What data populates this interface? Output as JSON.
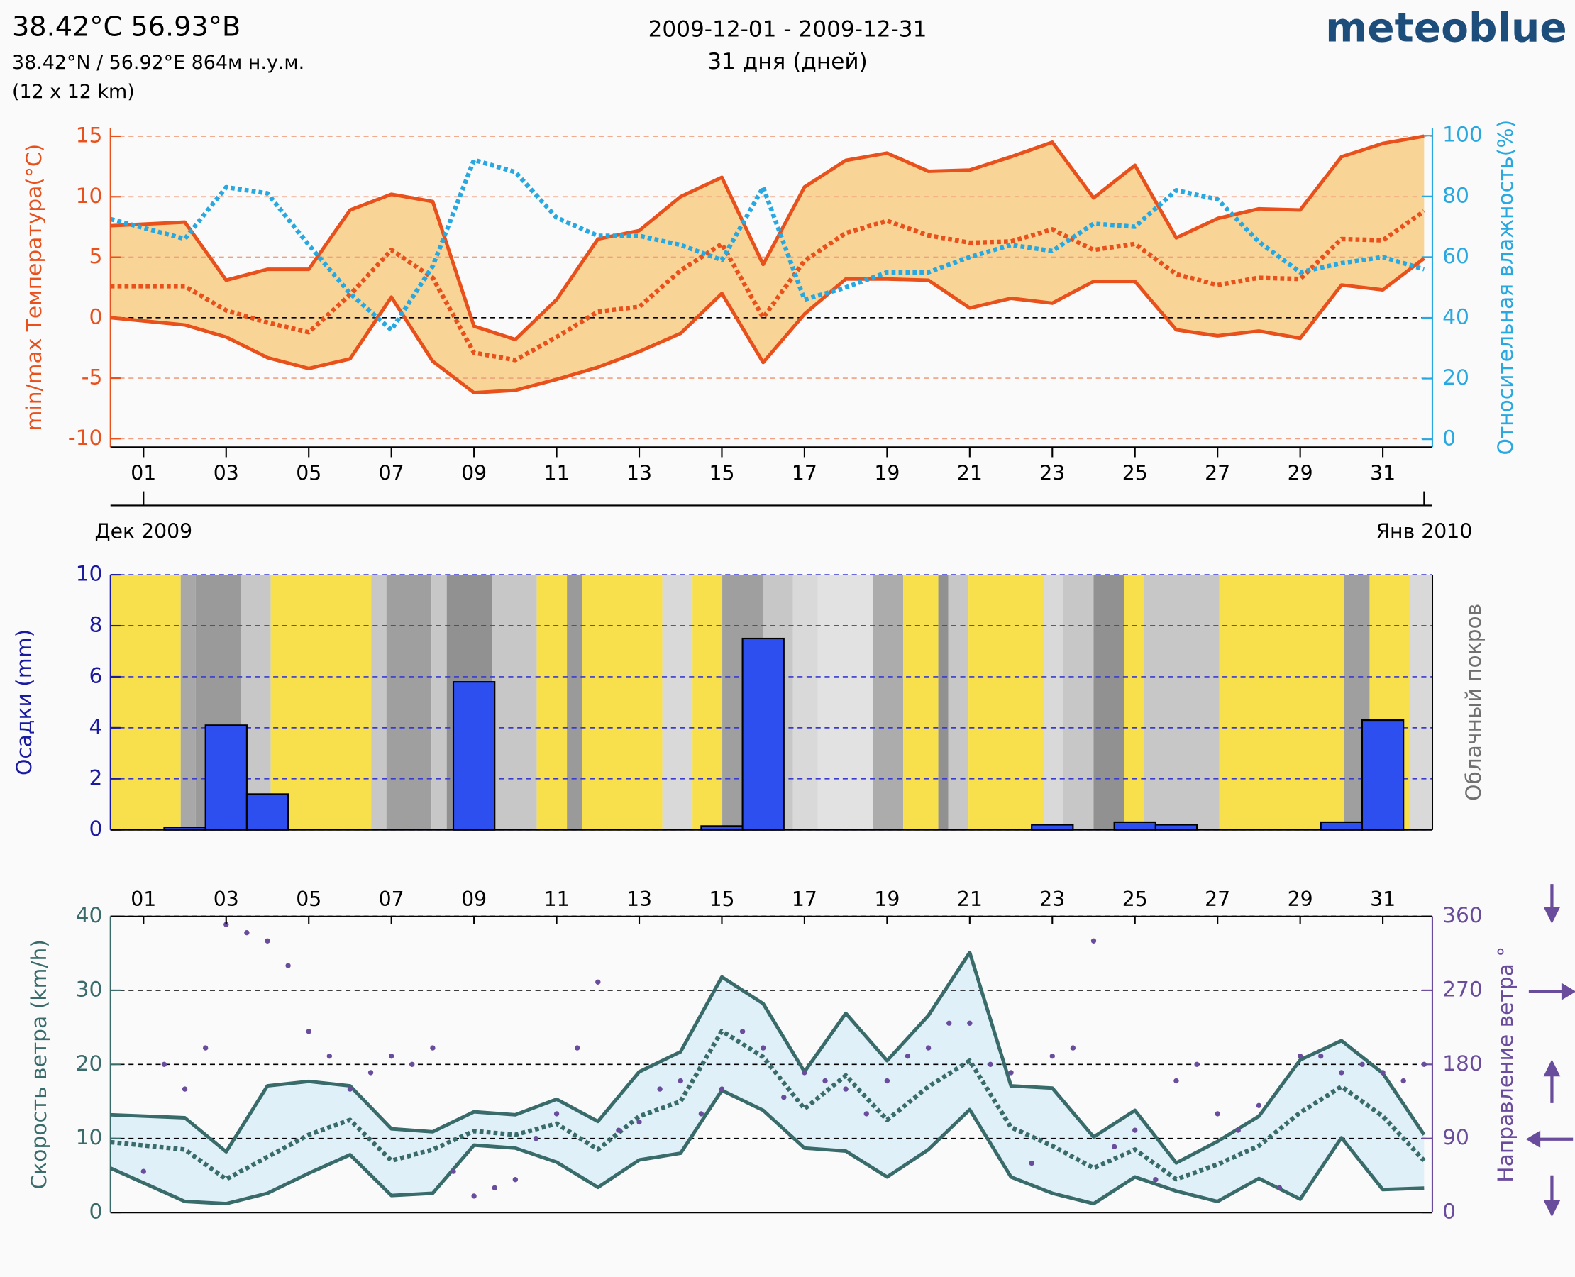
{
  "header": {
    "location": "38.42°C 56.93°B",
    "coords": "38.42°N / 56.92°E   864м н.у.м.",
    "grid": "(12 x 12 km)",
    "period": "2009-12-01 - 2009-12-31",
    "days": "31 дня (дней)",
    "brand": "meteoblue"
  },
  "chart_data": [
    {
      "type": "line",
      "ylabel": "min/max Температура(°C)",
      "y2label": "Относительная влажность(%)",
      "x": [
        0.2,
        2,
        3,
        4,
        5,
        6,
        7,
        8,
        9,
        10,
        11,
        12,
        13,
        14,
        15,
        16,
        17,
        18,
        19,
        20,
        21,
        22,
        23,
        24,
        25,
        26,
        27,
        28,
        29,
        30,
        31,
        32
      ],
      "xlim": [
        0.2,
        32.2
      ],
      "xticks": [
        {
          "value": 1,
          "label": "01"
        },
        {
          "value": 3,
          "label": "03"
        },
        {
          "value": 5,
          "label": "05"
        },
        {
          "value": 7,
          "label": "07"
        },
        {
          "value": 9,
          "label": "09"
        },
        11,
        13,
        15,
        17,
        19,
        21,
        23,
        25,
        27,
        29,
        31
      ],
      "month_ticks": [
        {
          "value": 1,
          "label": "Дек 2009"
        },
        {
          "value": 32,
          "label": "Янв 2010"
        }
      ],
      "ylim": [
        -10.7,
        15.7
      ],
      "yticks": [
        -10,
        -5,
        0,
        5,
        10,
        15
      ],
      "y2lim": [
        -2.6,
        102.6
      ],
      "y2ticks": [
        0,
        20,
        40,
        60,
        80,
        100
      ],
      "band_color": "#f8d597",
      "grid": true,
      "series": [
        {
          "color": "#e8501c",
          "style": "solid",
          "values": [
            7.6,
            7.9,
            3.1,
            4,
            4,
            8.9,
            10.2,
            9.6,
            -0.7,
            -1.8,
            1.5,
            6.5,
            7.2,
            10,
            11.6,
            4.4,
            10.8,
            13,
            13.6,
            12.1,
            12.2,
            13.3,
            14.5,
            9.9,
            12.6,
            6.6,
            8.2,
            9,
            8.9,
            13.3,
            14.4,
            15
          ]
        },
        {
          "color": "#e8501c",
          "style": "solid",
          "values": [
            0,
            -0.6,
            -1.6,
            -3.3,
            -4.2,
            -3.4,
            1.7,
            -3.6,
            -6.2,
            -6,
            -5.1,
            -4.1,
            -2.8,
            -1.3,
            2,
            -3.7,
            0.3,
            3.2,
            3.2,
            3.1,
            0.8,
            1.6,
            1.2,
            3,
            3,
            -1,
            -1.5,
            -1.1,
            -1.7,
            2.7,
            2.3,
            4.9
          ]
        },
        {
          "color": "#e8501c",
          "style": "dotted",
          "values": [
            2.6,
            2.6,
            0.6,
            -0.4,
            -1.2,
            1.9,
            5.6,
            3.3,
            -2.9,
            -3.5,
            -1.6,
            0.5,
            0.9,
            3.9,
            6.1,
            0,
            4.7,
            7,
            8,
            6.8,
            6.2,
            6.3,
            7.3,
            5.6,
            6.1,
            3.6,
            2.7,
            3.3,
            3.2,
            6.5,
            6.4,
            8.8
          ]
        },
        {
          "color": "#28a8e0",
          "style": "dotted",
          "axis": "y2",
          "values": [
            72.5,
            66,
            83,
            81,
            64,
            48,
            36,
            57,
            92,
            88,
            73,
            67,
            67,
            64,
            59,
            83,
            46,
            50,
            55,
            55,
            60,
            64,
            62,
            71,
            70,
            82,
            79,
            65,
            55,
            58,
            60,
            56
          ]
        }
      ]
    },
    {
      "type": "bar",
      "ylabel": "Осадки (mm)",
      "y2label": "Облачный покров",
      "x": [
        1,
        2,
        3,
        4,
        5,
        6,
        7,
        8,
        9,
        10,
        11,
        12,
        13,
        14,
        15,
        16,
        17,
        18,
        19,
        20,
        21,
        22,
        23,
        24,
        25,
        26,
        27,
        28,
        29,
        30,
        31
      ],
      "xlim": [
        0.2,
        32.2
      ],
      "ylim": [
        0,
        10
      ],
      "yticks": [
        0,
        2,
        4,
        6,
        8,
        10
      ],
      "grid": true,
      "color": "#2e4ff0",
      "values": [
        0,
        0.1,
        4.1,
        1.4,
        0,
        0,
        0,
        0,
        5.8,
        0,
        0,
        0,
        0,
        0,
        0.15,
        7.5,
        0,
        0,
        0,
        0,
        0,
        0,
        0.2,
        0,
        0.3,
        0.2,
        0,
        0,
        0,
        0.3,
        4.3
      ],
      "cloud_cover": [
        {
          "start": 0.2,
          "end": 1.9,
          "cover": 0
        },
        {
          "start": 1.9,
          "end": 2.26,
          "cover": 75
        },
        {
          "start": 2.26,
          "end": 3.36,
          "cover": 90
        },
        {
          "start": 3.36,
          "end": 4.08,
          "cover": 40
        },
        {
          "start": 4.08,
          "end": 6.51,
          "cover": 0
        },
        {
          "start": 6.51,
          "end": 6.88,
          "cover": 40
        },
        {
          "start": 6.88,
          "end": 7.97,
          "cover": 85
        },
        {
          "start": 7.97,
          "end": 8.34,
          "cover": 40
        },
        {
          "start": 8.34,
          "end": 9.43,
          "cover": 100
        },
        {
          "start": 9.43,
          "end": 10.52,
          "cover": 40
        },
        {
          "start": 10.52,
          "end": 11.25,
          "cover": 0
        },
        {
          "start": 11.25,
          "end": 11.61,
          "cover": 90
        },
        {
          "start": 11.61,
          "end": 13.56,
          "cover": 0
        },
        {
          "start": 13.56,
          "end": 14.29,
          "cover": 20
        },
        {
          "start": 14.29,
          "end": 15.01,
          "cover": 0
        },
        {
          "start": 15.01,
          "end": 15.99,
          "cover": 85
        },
        {
          "start": 15.99,
          "end": 16.72,
          "cover": 40
        },
        {
          "start": 16.72,
          "end": 17.32,
          "cover": 20
        },
        {
          "start": 17.32,
          "end": 18.66,
          "cover": 10
        },
        {
          "start": 18.66,
          "end": 19.39,
          "cover": 70
        },
        {
          "start": 19.39,
          "end": 20.24,
          "cover": 0
        },
        {
          "start": 20.24,
          "end": 20.48,
          "cover": 100
        },
        {
          "start": 20.48,
          "end": 20.97,
          "cover": 40
        },
        {
          "start": 20.97,
          "end": 22.79,
          "cover": 0
        },
        {
          "start": 22.79,
          "end": 23.27,
          "cover": 20
        },
        {
          "start": 23.27,
          "end": 24.0,
          "cover": 40
        },
        {
          "start": 24.0,
          "end": 24.73,
          "cover": 100
        },
        {
          "start": 24.73,
          "end": 25.22,
          "cover": 0
        },
        {
          "start": 25.22,
          "end": 27.04,
          "cover": 40
        },
        {
          "start": 27.04,
          "end": 30.07,
          "cover": 0
        },
        {
          "start": 30.07,
          "end": 30.68,
          "cover": 85
        },
        {
          "start": 30.68,
          "end": 31.66,
          "cover": 0
        },
        {
          "start": 31.66,
          "end": 32.17,
          "cover": 20
        }
      ]
    },
    {
      "type": "line",
      "ylabel": "Скорость ветра (km/h)",
      "y2label": "Направление ветра °",
      "x": [
        0.2,
        2,
        3,
        4,
        5,
        6,
        7,
        8,
        9,
        10,
        11,
        12,
        13,
        14,
        15,
        16,
        17,
        18,
        19,
        20,
        21,
        22,
        23,
        24,
        25,
        26,
        27,
        28,
        29,
        30,
        31,
        32
      ],
      "xlim": [
        0.2,
        32.2
      ],
      "xticks": [
        {
          "value": 1,
          "label": "01"
        },
        {
          "value": 3,
          "label": "03"
        },
        {
          "value": 5,
          "label": "05"
        },
        {
          "value": 7,
          "label": "07"
        },
        {
          "value": 9,
          "label": "09"
        },
        11,
        13,
        15,
        17,
        19,
        21,
        23,
        25,
        27,
        29,
        31
      ],
      "ylim": [
        0,
        40
      ],
      "yticks": [
        0,
        10,
        20,
        30,
        40
      ],
      "y2lim": [
        0,
        360
      ],
      "y2ticks": [
        0,
        90,
        180,
        270,
        360
      ],
      "band_color": "#e0f0f8",
      "grid": true,
      "series": [
        {
          "color": "#3a6b6b",
          "style": "solid",
          "values": [
            13.2,
            12.8,
            8.2,
            17.1,
            17.7,
            17.1,
            11.3,
            10.9,
            13.6,
            13.2,
            15.3,
            12.3,
            19,
            21.7,
            31.8,
            28.2,
            19,
            26.9,
            20.5,
            26.6,
            35.1,
            17.1,
            16.8,
            10.2,
            13.8,
            6.7,
            9.6,
            13,
            20.6,
            23.2,
            18.8,
            10.5
          ]
        },
        {
          "color": "#3a6b6b",
          "style": "solid",
          "values": [
            6,
            1.5,
            1.2,
            2.6,
            5.3,
            7.8,
            2.3,
            2.6,
            9.1,
            8.7,
            6.8,
            3.4,
            7.1,
            8,
            16.5,
            13.8,
            8.7,
            8.3,
            4.8,
            8.5,
            13.9,
            4.8,
            2.6,
            1.2,
            4.8,
            2.9,
            1.5,
            4.6,
            1.8,
            10.1,
            3.1,
            3.3
          ]
        },
        {
          "color": "#3a6b6b",
          "style": "dotted",
          "values": [
            9.5,
            8.5,
            4.5,
            7.5,
            10.5,
            12.5,
            7,
            8.5,
            11,
            10.5,
            12,
            8.5,
            13,
            15,
            24.5,
            21,
            14,
            18.5,
            12.5,
            17,
            20.5,
            11.5,
            9,
            6,
            8.5,
            4.5,
            6.5,
            9,
            13.5,
            17,
            13,
            7
          ]
        },
        {
          "type": "scatter",
          "color": "#6a4c9c",
          "axis": "y2",
          "x": [
            1,
            1.5,
            2,
            2.5,
            3,
            3.5,
            4,
            4.5,
            5,
            5.5,
            6,
            6.5,
            7,
            7.5,
            8,
            8.5,
            9,
            9.5,
            10,
            10.5,
            11,
            11.5,
            12,
            12.5,
            13,
            13.5,
            14,
            14.5,
            15,
            15.5,
            16,
            16.5,
            17,
            17.5,
            18,
            18.5,
            19,
            19.5,
            20,
            20.5,
            21,
            21.5,
            22,
            22.5,
            23,
            23.5,
            24,
            24.5,
            25,
            25.5,
            26,
            26.5,
            27,
            27.5,
            28,
            28.5,
            29,
            29.5,
            30,
            30.5,
            31,
            31.5,
            32
          ],
          "values": [
            50,
            180,
            150,
            200,
            350,
            340,
            330,
            300,
            220,
            190,
            150,
            170,
            190,
            180,
            200,
            50,
            20,
            30,
            40,
            90,
            120,
            200,
            280,
            100,
            110,
            150,
            160,
            120,
            150,
            220,
            200,
            140,
            170,
            160,
            150,
            120,
            160,
            190,
            200,
            230,
            230,
            180,
            170,
            60,
            190,
            200,
            330,
            80,
            100,
            40,
            160,
            180,
            120,
            100,
            130,
            30,
            190,
            190,
            170,
            180,
            170,
            160,
            180
          ]
        }
      ]
    }
  ]
}
